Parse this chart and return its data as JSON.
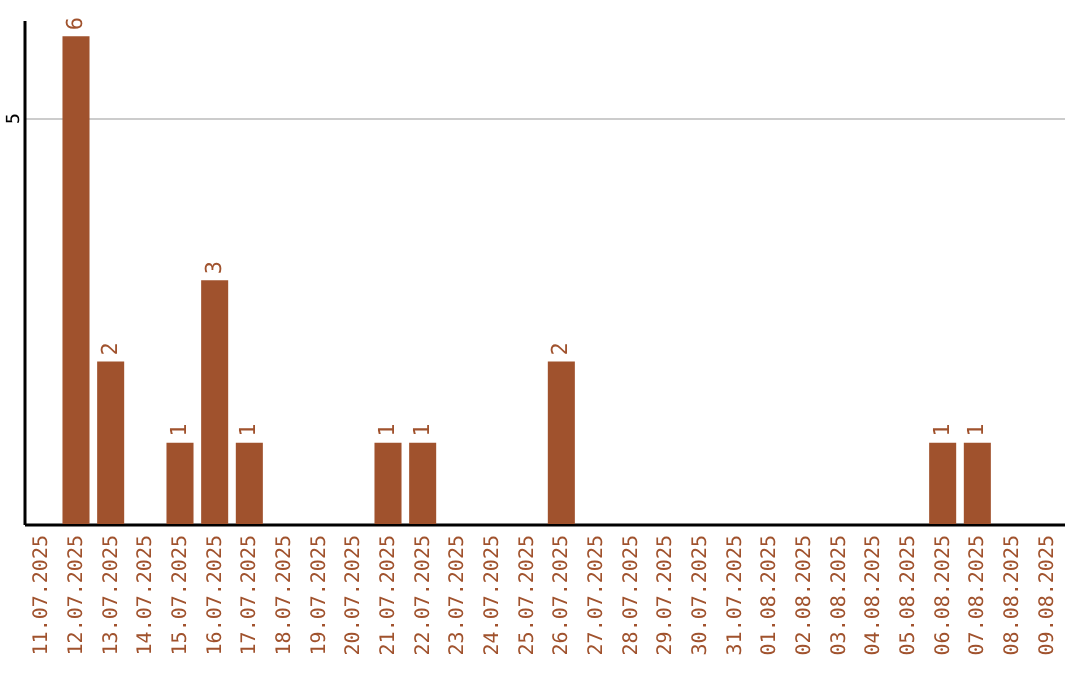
{
  "chart_data": {
    "type": "bar",
    "categories": [
      "11.07.2025",
      "12.07.2025",
      "13.07.2025",
      "14.07.2025",
      "15.07.2025",
      "16.07.2025",
      "17.07.2025",
      "18.07.2025",
      "19.07.2025",
      "20.07.2025",
      "21.07.2025",
      "22.07.2025",
      "23.07.2025",
      "24.07.2025",
      "25.07.2025",
      "26.07.2025",
      "27.07.2025",
      "28.07.2025",
      "29.07.2025",
      "30.07.2025",
      "31.07.2025",
      "01.08.2025",
      "02.08.2025",
      "03.08.2025",
      "04.08.2025",
      "05.08.2025",
      "06.08.2025",
      "07.08.2025",
      "08.08.2025",
      "09.08.2025"
    ],
    "values": [
      0,
      6,
      2,
      0,
      1,
      3,
      1,
      0,
      0,
      0,
      1,
      1,
      0,
      0,
      0,
      2,
      0,
      0,
      0,
      0,
      0,
      0,
      0,
      0,
      0,
      0,
      1,
      1,
      0,
      0
    ],
    "value_labels": [
      null,
      "6",
      "2",
      null,
      "1",
      "3",
      "1",
      null,
      null,
      null,
      "1",
      "1",
      null,
      null,
      null,
      "2",
      null,
      null,
      null,
      null,
      null,
      null,
      null,
      null,
      null,
      null,
      "1",
      "1",
      null,
      null
    ],
    "color": "#a0522d",
    "ylim": [
      0,
      6.2
    ],
    "yticks": [
      5
    ],
    "grid": "y"
  }
}
